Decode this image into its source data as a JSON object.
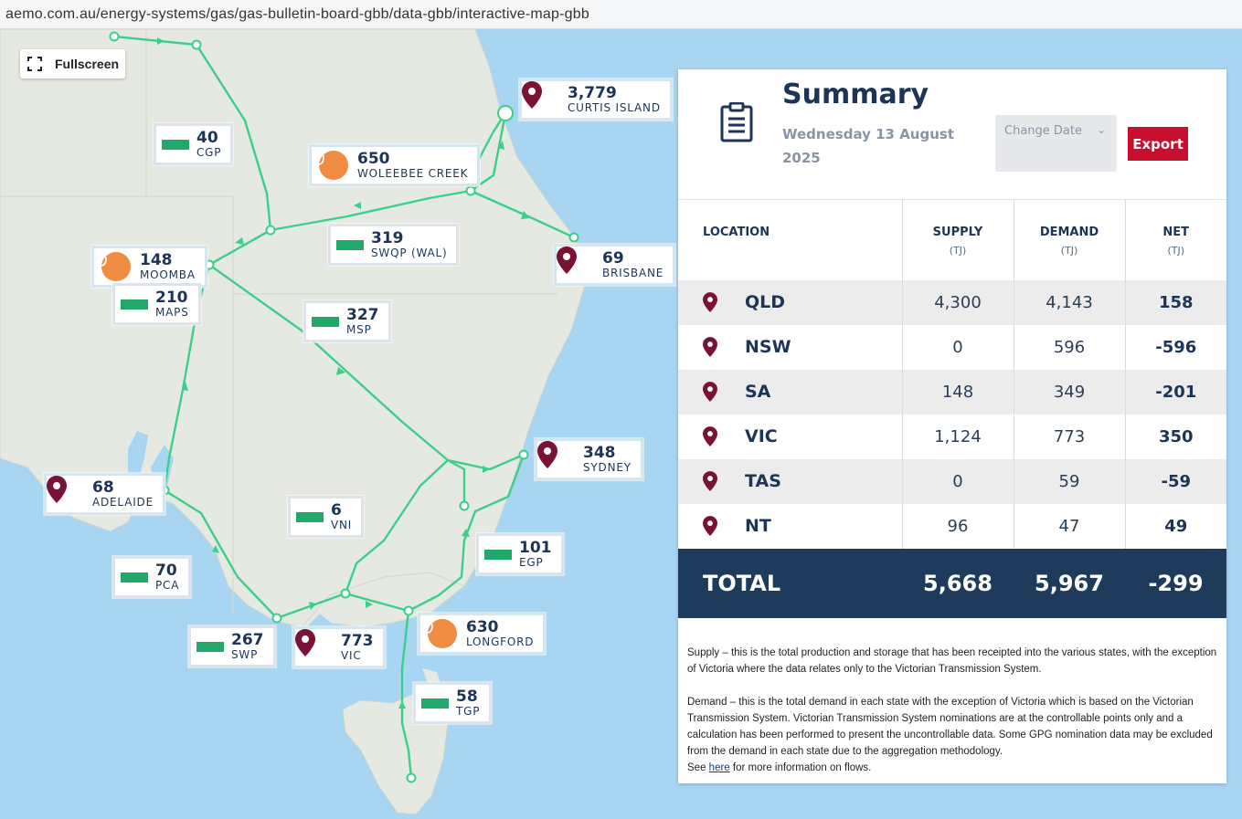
{
  "browser": {
    "url": "aemo.com.au/energy-systems/gas/gas-bulletin-board-gbb/data-gbb/interactive-map-gbb"
  },
  "map": {
    "fullscreen_label": "Fullscreen",
    "locations": [
      {
        "value": "3,779",
        "label": "CURTIS ISLAND",
        "icon": "location-pin-icon"
      },
      {
        "value": "650",
        "label": "WOLEEBEE CREEK",
        "icon": "flame-icon"
      },
      {
        "value": "69",
        "label": "BRISBANE",
        "icon": "location-pin-icon"
      },
      {
        "value": "148",
        "label": "MOOMBA",
        "icon": "flame-icon"
      },
      {
        "value": "348",
        "label": "SYDNEY",
        "icon": "location-pin-icon"
      },
      {
        "value": "68",
        "label": "ADELAIDE",
        "icon": "location-pin-icon"
      },
      {
        "value": "773",
        "label": "VIC",
        "icon": "location-pin-icon"
      },
      {
        "value": "630",
        "label": "LONGFORD",
        "icon": "flame-icon"
      }
    ],
    "pipelines": [
      {
        "value": "40",
        "label": "CGP"
      },
      {
        "value": "319",
        "label": "SWQP (WAL)"
      },
      {
        "value": "210",
        "label": "MAPS"
      },
      {
        "value": "327",
        "label": "MSP"
      },
      {
        "value": "6",
        "label": "VNI"
      },
      {
        "value": "101",
        "label": "EGP"
      },
      {
        "value": "70",
        "label": "PCA"
      },
      {
        "value": "267",
        "label": "SWP"
      },
      {
        "value": "58",
        "label": "TGP"
      }
    ],
    "colors": {
      "pipeline": "#3ccf8a",
      "flow_bar": "#21a86a",
      "pin": "#7a1233",
      "flame": "#ef8c42",
      "sea": "#a8d5f2",
      "land": "#e6e9e1"
    }
  },
  "summary": {
    "title": "Summary",
    "date": "Wednesday 13 August 2025",
    "change_date_label": "Change Date",
    "export_label": "Export",
    "columns": {
      "location": "LOCATION",
      "supply": "SUPPLY",
      "supply_unit": "(TJ)",
      "demand": "DEMAND",
      "demand_unit": "(TJ)",
      "net": "NET",
      "net_unit": "(TJ)"
    },
    "rows": [
      {
        "state": "QLD",
        "supply": "4,300",
        "demand": "4,143",
        "net": "158"
      },
      {
        "state": "NSW",
        "supply": "0",
        "demand": "596",
        "net": "-596"
      },
      {
        "state": "SA",
        "supply": "148",
        "demand": "349",
        "net": "-201"
      },
      {
        "state": "VIC",
        "supply": "1,124",
        "demand": "773",
        "net": "350"
      },
      {
        "state": "TAS",
        "supply": "0",
        "demand": "59",
        "net": "-59"
      },
      {
        "state": "NT",
        "supply": "96",
        "demand": "47",
        "net": "49"
      }
    ],
    "total": {
      "label": "TOTAL",
      "supply": "5,668",
      "demand": "5,967",
      "net": "-299"
    },
    "notes": {
      "supply": "Supply – this is the total production and storage that has been receipted into the various states, with the exception of Victoria where the data relates only to the Victorian Transmission System.",
      "demand": "Demand – this is the total demand in each state with the exception of Victoria which is based on the Victorian Transmission System. Victorian Transmission System nominations are at the controllable points only and a calculation has been performed to present the uncontrollable data. Some GPG nomination data may be excluded from the demand in each state due to the aggregation methodology.",
      "see_prefix": "See ",
      "see_link": "here",
      "see_suffix": " for more information on flows."
    },
    "colors": {
      "title": "#1c3557",
      "export_bg": "#c8102e",
      "total_bg": "#1f3b5c",
      "row_shade": "#ececec"
    }
  }
}
